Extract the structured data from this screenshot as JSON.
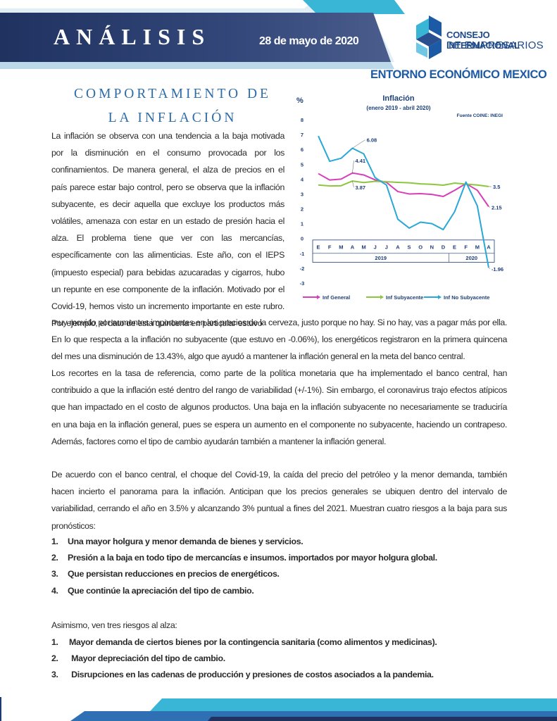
{
  "header": {
    "title": "ANÁLISIS",
    "date": "28 de mayo de 2020",
    "logo_line1": "CONSEJO INTERNACIONAL",
    "logo_line2": "DE EMPRESARIOS",
    "section": "ENTORNO ECONÓMICO MEXICO"
  },
  "article": {
    "title_line1": "COMPORTAMIENTO DE",
    "title_line2": "LA INFLACIÓN",
    "p_left": "La inflación se observa con una tendencia a la baja motivada por la disminución en el consumo provocada por los confinamientos. De manera general, el alza de precios en el país parece estar bajo control, pero se observa que la inflación subyacente, es decir aquella que excluye los productos más volátiles, amenaza con estar en un estado de presión hacia el alza. El problema tiene que ver con las mercancías, específicamente con las alimenticias. Este año, con el IEPS (impuesto especial) para bebidas azucaradas y cigarros, hubo un repunte en ese componente de la inflación. Motivado por el Covid-19, hemos visto un incremento importante en este rubro. Por ejemplo, el dato de esta quincena en particular estuvo",
    "p_full1": "muy movido por aumentos importantes en los precios de la cerveza, justo porque no hay. Si no hay, vas a pagar más por ella. En lo que respecta a la inflación no subyacente (que estuvo en -0.06%), los energéticos registraron en la primera quincena del mes una disminución de 13.43%, algo que ayudó a mantener la inflación general en la meta del banco central.",
    "p_full2": "Los recortes en la tasa de referencia, como parte de la política monetaria que ha implementado el banco central, han contribuido a que la inflación esté dentro del rango de variabilidad (+/-1%). Sin embargo, el coronavirus trajo efectos atípicos que han impactado en el costo de algunos productos. Una baja en la inflación subyacente no necesariamente se traduciría en una baja en la inflación general, pues se espera un aumento en el componente no subyacente, haciendo un contrapeso. Además, factores como el tipo de cambio ayudarán también a mantener la inflación general.",
    "p_full3": "De acuerdo con el banco central, el choque del Covid-19, la caída del precio del petróleo y la menor demanda, también hacen incierto el panorama para la inflación. Anticipan que los precios generales se ubiquen dentro del intervalo de variabilidad, cerrando el año en 3.5% y alcanzando 3% puntual a fines del 2021. Muestran cuatro riesgos a la baja para sus pronósticos:",
    "risks_down": [
      {
        "num": "1.",
        "text": "Una mayor holgura y menor demanda de bienes y servicios."
      },
      {
        "num": "2.",
        "text": "Presión a la baja en todo tipo de mercancías e insumos. importados por mayor holgura global."
      },
      {
        "num": "3.",
        "text": "Que persistan reducciones en precios de energéticos."
      },
      {
        "num": "4.",
        "text": "Que continúe la apreciación del tipo de cambio."
      }
    ],
    "p_up_intro": "Asimismo, ven tres riesgos al alza:",
    "risks_up": [
      {
        "num": "1.",
        "text": "Mayor demanda de ciertos bienes por la contingencia sanitaria (como alimentos y medicinas)."
      },
      {
        "num": "2.",
        "text": " Mayor depreciación del tipo de cambio."
      },
      {
        "num": "3.",
        "text": " Disrupciones en las cadenas de producción y presiones de costos asociados a la pandemia."
      }
    ]
  },
  "chart_data": {
    "type": "line",
    "title": "Inflación",
    "subtitle": "(enero 2019 - abril 2020)",
    "source": "Fuente COINE: INEGI",
    "ylabel": "%",
    "ylim": [
      -3,
      8
    ],
    "yticks": [
      8,
      7,
      6,
      5,
      4,
      3,
      2,
      1,
      0,
      -1,
      -2,
      -3
    ],
    "categories": [
      "E",
      "F",
      "M",
      "A",
      "M",
      "J",
      "J",
      "A",
      "S",
      "O",
      "N",
      "D",
      "E",
      "F",
      "M",
      "A"
    ],
    "years": [
      {
        "label": "2019",
        "span": 12
      },
      {
        "label": "2020",
        "span": 4
      }
    ],
    "series": [
      {
        "name": "Inf General",
        "color": "#d63fb8",
        "values": [
          4.37,
          3.94,
          4.0,
          4.41,
          4.28,
          3.95,
          3.78,
          3.16,
          3.0,
          3.02,
          2.97,
          2.83,
          3.24,
          3.7,
          3.25,
          2.15
        ]
      },
      {
        "name": "Inf Subyacente",
        "color": "#8cc63f",
        "values": [
          3.6,
          3.54,
          3.55,
          3.87,
          3.77,
          3.85,
          3.82,
          3.78,
          3.75,
          3.68,
          3.65,
          3.59,
          3.73,
          3.66,
          3.6,
          3.5
        ]
      },
      {
        "name": "Inf No Subyacente",
        "color": "#29a8d8",
        "values": [
          6.9,
          5.2,
          5.4,
          6.08,
          5.7,
          4.1,
          3.6,
          1.3,
          0.7,
          1.1,
          1.0,
          0.6,
          1.8,
          3.8,
          2.2,
          -1.96
        ]
      }
    ],
    "annotations": [
      "6.08",
      "4.41",
      "3.87",
      "3.5",
      "2.15",
      "-1.96"
    ],
    "legend": "bottom"
  }
}
